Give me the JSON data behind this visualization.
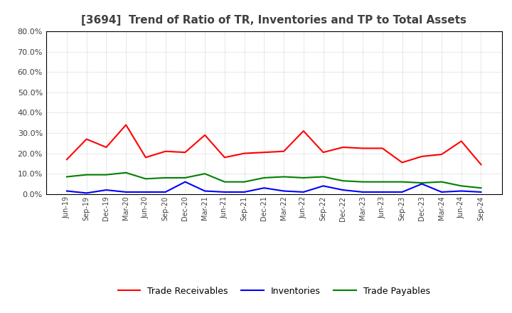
{
  "title": "[3694]  Trend of Ratio of TR, Inventories and TP to Total Assets",
  "x_labels": [
    "Jun-19",
    "Sep-19",
    "Dec-19",
    "Mar-20",
    "Jun-20",
    "Sep-20",
    "Dec-20",
    "Mar-21",
    "Jun-21",
    "Sep-21",
    "Dec-21",
    "Mar-22",
    "Jun-22",
    "Sep-22",
    "Dec-22",
    "Mar-23",
    "Jun-23",
    "Sep-23",
    "Dec-23",
    "Mar-24",
    "Jun-24",
    "Sep-24"
  ],
  "trade_receivables": [
    17.0,
    27.0,
    23.0,
    34.0,
    18.0,
    21.0,
    20.5,
    29.0,
    18.0,
    20.0,
    20.5,
    21.0,
    31.0,
    20.5,
    23.0,
    22.5,
    22.5,
    15.5,
    18.5,
    19.5,
    26.0,
    14.5
  ],
  "inventories": [
    1.5,
    0.5,
    2.0,
    1.0,
    1.0,
    1.0,
    6.0,
    1.5,
    1.0,
    1.0,
    3.0,
    1.5,
    1.0,
    4.0,
    2.0,
    1.0,
    1.0,
    1.0,
    5.0,
    1.0,
    1.5,
    1.0
  ],
  "trade_payables": [
    8.5,
    9.5,
    9.5,
    10.5,
    7.5,
    8.0,
    8.0,
    10.0,
    6.0,
    6.0,
    8.0,
    8.5,
    8.0,
    8.5,
    6.5,
    6.0,
    6.0,
    6.0,
    5.5,
    6.0,
    4.0,
    3.0
  ],
  "tr_color": "#ff0000",
  "inv_color": "#0000ff",
  "tp_color": "#008000",
  "ylim": [
    0,
    80
  ],
  "yticks": [
    0,
    10,
    20,
    30,
    40,
    50,
    60,
    70,
    80
  ],
  "background_color": "#ffffff",
  "grid_color": "#aaaaaa",
  "legend_labels": [
    "Trade Receivables",
    "Inventories",
    "Trade Payables"
  ],
  "title_color": "#404040",
  "tick_color": "#404040"
}
